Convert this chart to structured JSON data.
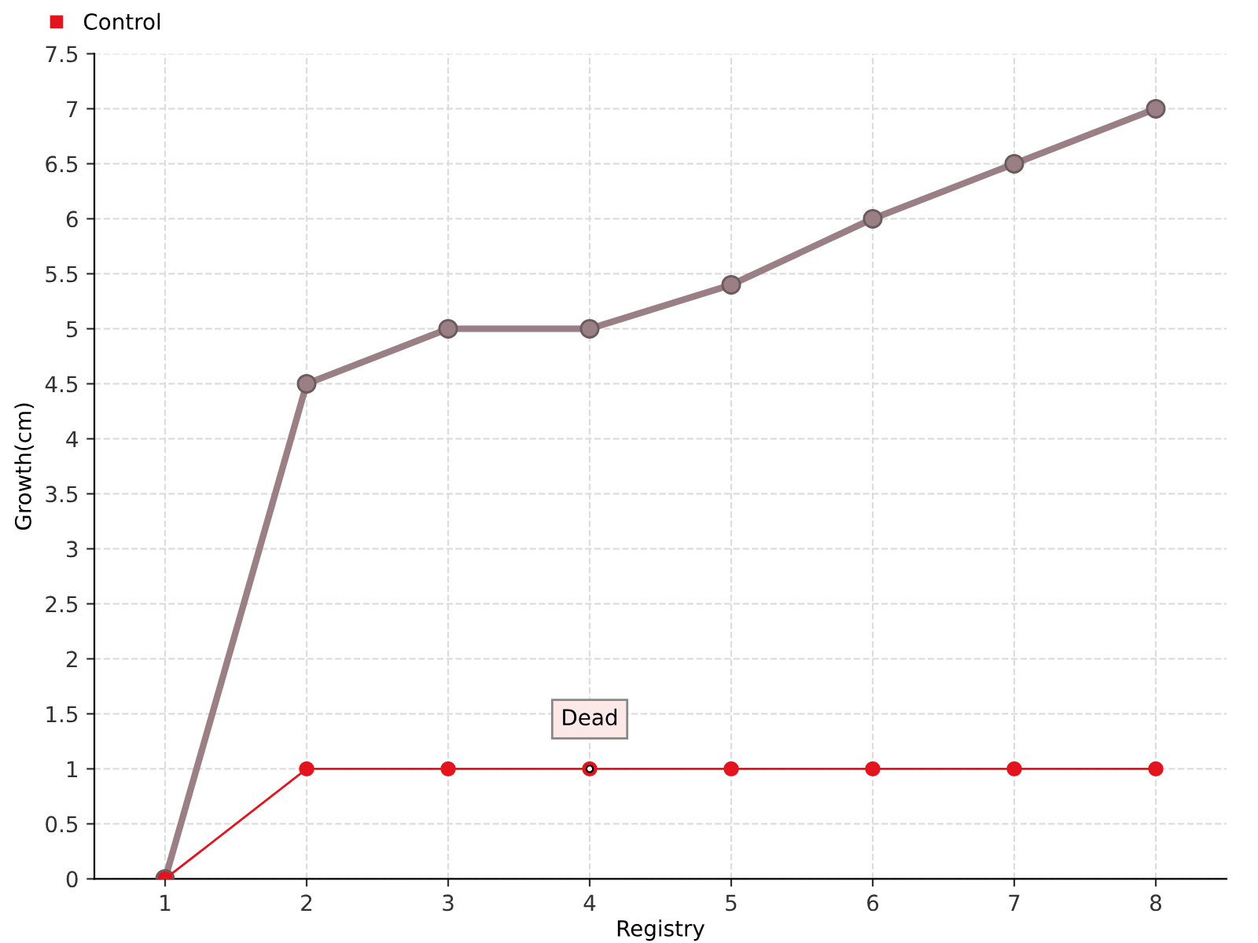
{
  "chart_data": {
    "type": "line",
    "xlabel": "Registry",
    "ylabel": "Growth(cm)",
    "categories": [
      "1",
      "2",
      "3",
      "4",
      "5",
      "6",
      "7",
      "8"
    ],
    "series": [
      {
        "color": "#9a7f85",
        "values": [
          0,
          4.5,
          5,
          5,
          5.4,
          6,
          6.5,
          7
        ]
      },
      {
        "name": "Control",
        "color": "#e3141e",
        "values": [
          0,
          1,
          1,
          1,
          1,
          1,
          1,
          1
        ]
      }
    ],
    "ylim": [
      0,
      7.5
    ],
    "yticks": [
      0,
      0.5,
      1,
      1.5,
      2,
      2.5,
      3,
      3.5,
      4,
      4.5,
      5,
      5.5,
      6,
      6.5,
      7,
      7.5
    ],
    "annotations": [
      {
        "text": "Dead",
        "x": "4",
        "y": 1
      }
    ],
    "grid": true,
    "legend": "top left",
    "marker": "circle",
    "line_style": "solid"
  }
}
